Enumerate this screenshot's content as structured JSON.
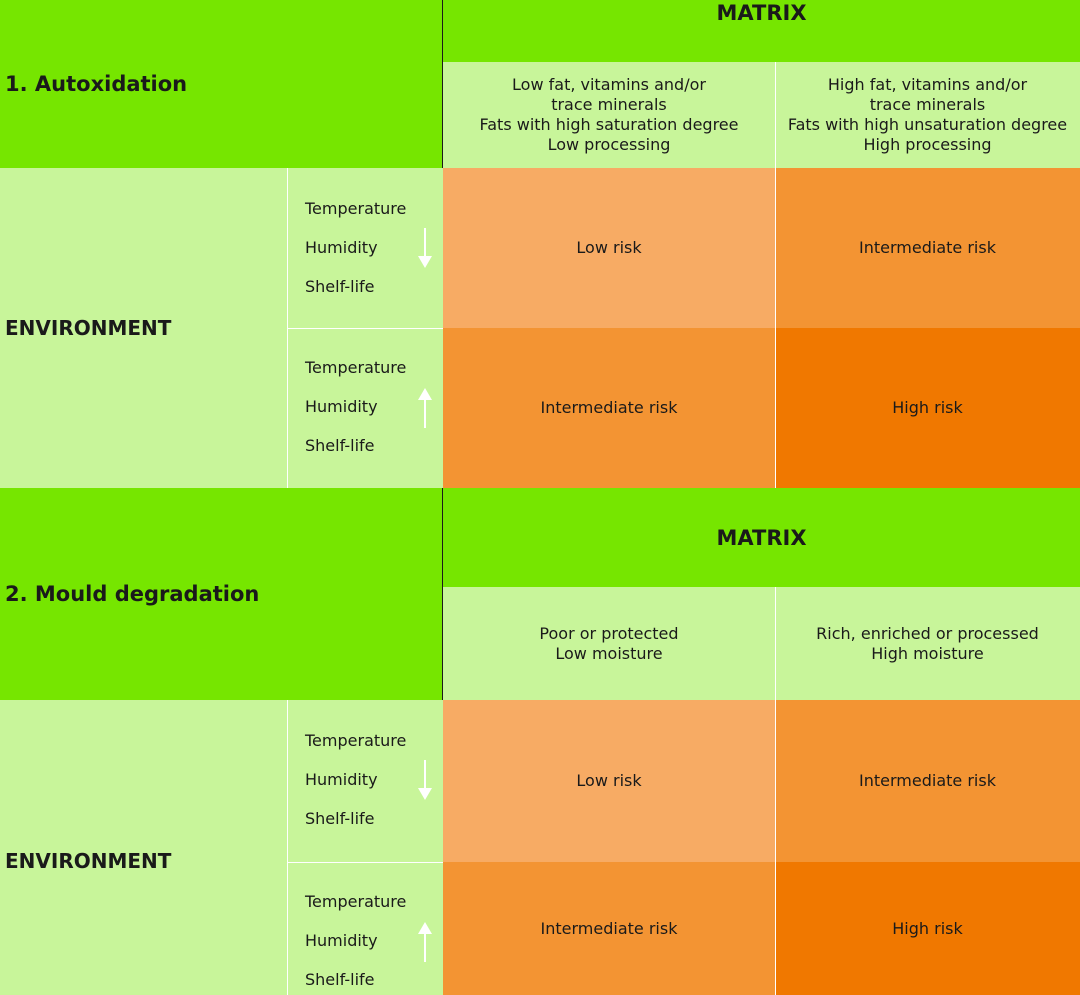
{
  "colors": {
    "title_green": "#76e600",
    "light_green": "#c8f59a",
    "low_risk": "#f7ab64",
    "intermediate_risk": "#f39433",
    "high_risk": "#f07800"
  },
  "sections": [
    {
      "title": "1. Autoxidation",
      "matrix_header": "MATRIX",
      "matrix_columns": [
        {
          "lines": [
            "Low fat, vitamins and/or",
            "trace minerals",
            "Fats with high saturation degree",
            "Low processing"
          ]
        },
        {
          "lines": [
            "High fat, vitamins and/or",
            "trace minerals",
            "Fats with high unsaturation degree",
            "High processing"
          ]
        }
      ],
      "environment_label": "ENVIRONMENT",
      "rows": [
        {
          "factors": [
            "Temperature",
            "Humidity",
            "Shelf-life"
          ],
          "arrow": "down-arrow-icon",
          "risks": [
            "Low risk",
            "Intermediate risk"
          ]
        },
        {
          "factors": [
            "Temperature",
            "Humidity",
            "Shelf-life"
          ],
          "arrow": "up-arrow-icon",
          "risks": [
            "Intermediate risk",
            "High risk"
          ]
        }
      ]
    },
    {
      "title": "2. Mould degradation",
      "matrix_header": "MATRIX",
      "matrix_columns": [
        {
          "lines": [
            "Poor or protected",
            "Low moisture"
          ]
        },
        {
          "lines": [
            "Rich, enriched or processed",
            "High moisture"
          ]
        }
      ],
      "environment_label": "ENVIRONMENT",
      "rows": [
        {
          "factors": [
            "Temperature",
            "Humidity",
            "Shelf-life"
          ],
          "arrow": "down-arrow-icon",
          "risks": [
            "Low risk",
            "Intermediate risk"
          ]
        },
        {
          "factors": [
            "Temperature",
            "Humidity",
            "Shelf-life"
          ],
          "arrow": "up-arrow-icon",
          "risks": [
            "Intermediate risk",
            "High risk"
          ]
        }
      ]
    }
  ]
}
